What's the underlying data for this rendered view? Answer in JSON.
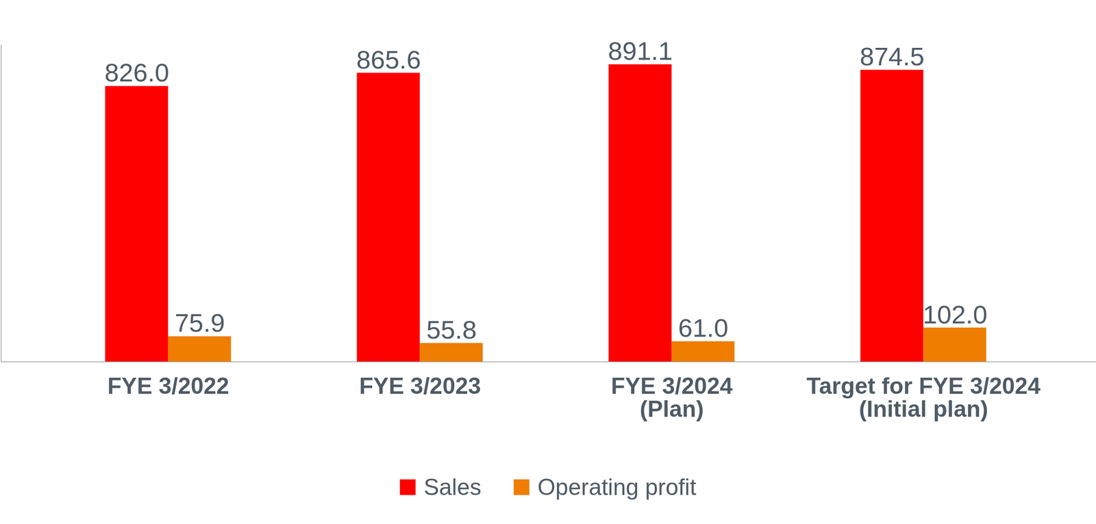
{
  "chart_data": {
    "type": "bar",
    "categories": [
      "FYE 3/2022",
      "FYE 3/2023",
      "FYE 3/2024\n(Plan)",
      "Target for FYE 3/2024\n(Initial plan)"
    ],
    "series": [
      {
        "name": "Sales",
        "color": "#ff0000",
        "values": [
          826.0,
          865.6,
          891.1,
          874.5
        ],
        "value_labels": [
          "826.0",
          "865.6",
          "891.1",
          "874.5"
        ]
      },
      {
        "name": "Operating profit",
        "color": "#ef7d00",
        "values": [
          75.9,
          55.8,
          61.0,
          102.0
        ],
        "value_labels": [
          "75.9",
          "55.8",
          "61.0",
          "102.0"
        ]
      }
    ],
    "ylim": [
      0,
      950
    ],
    "yticks": [
      0
    ],
    "grid": false,
    "data_labels": true,
    "tick_labels": "x",
    "legend": "bottom"
  }
}
